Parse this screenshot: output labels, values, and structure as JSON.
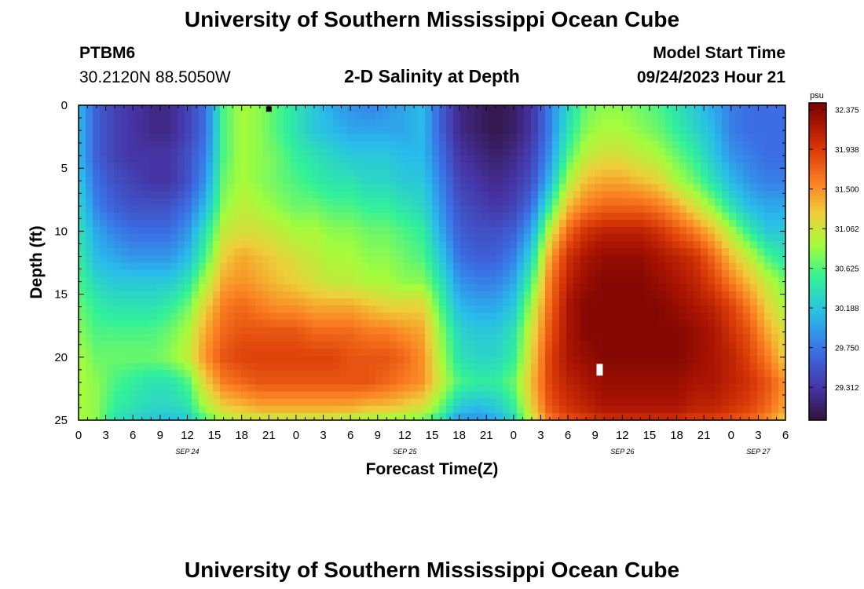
{
  "header": {
    "title": "University of Southern Mississippi Ocean Cube",
    "station_id": "PTBM6",
    "station_coords": "30.2120N  88.5050W",
    "plot_title": "2-D Salinity at Depth",
    "model_start_label": "Model Start Time",
    "model_start_value": "09/24/2023 Hour 21"
  },
  "footer": {
    "title": "University of Southern Mississippi Ocean Cube"
  },
  "chart_data": {
    "type": "heatmap",
    "title": "2-D Salinity at Depth",
    "xlabel": "Forecast Time(Z)",
    "ylabel": "Depth (ft)",
    "x_range_hours": [
      0,
      78
    ],
    "y_range_ft": [
      0,
      25
    ],
    "x_ticks": [
      {
        "hour": 0,
        "label": "0"
      },
      {
        "hour": 3,
        "label": "3"
      },
      {
        "hour": 6,
        "label": "6"
      },
      {
        "hour": 9,
        "label": "9"
      },
      {
        "hour": 12,
        "label": "12"
      },
      {
        "hour": 15,
        "label": "15"
      },
      {
        "hour": 18,
        "label": "18"
      },
      {
        "hour": 21,
        "label": "21"
      },
      {
        "hour": 24,
        "label": "0"
      },
      {
        "hour": 27,
        "label": "3"
      },
      {
        "hour": 30,
        "label": "6"
      },
      {
        "hour": 33,
        "label": "9"
      },
      {
        "hour": 36,
        "label": "12"
      },
      {
        "hour": 39,
        "label": "15"
      },
      {
        "hour": 42,
        "label": "18"
      },
      {
        "hour": 45,
        "label": "21"
      },
      {
        "hour": 48,
        "label": "0"
      },
      {
        "hour": 51,
        "label": "3"
      },
      {
        "hour": 54,
        "label": "6"
      },
      {
        "hour": 57,
        "label": "9"
      },
      {
        "hour": 60,
        "label": "12"
      },
      {
        "hour": 63,
        "label": "15"
      },
      {
        "hour": 66,
        "label": "18"
      },
      {
        "hour": 69,
        "label": "21"
      },
      {
        "hour": 72,
        "label": "0"
      },
      {
        "hour": 75,
        "label": "3"
      },
      {
        "hour": 78,
        "label": "6"
      }
    ],
    "date_labels": [
      {
        "hour": 12,
        "label": "SEP 24"
      },
      {
        "hour": 36,
        "label": "SEP 25"
      },
      {
        "hour": 60,
        "label": "SEP 26"
      },
      {
        "hour": 75,
        "label": "SEP 27"
      }
    ],
    "y_ticks": [
      0,
      5,
      10,
      15,
      20,
      25
    ],
    "colorbar": {
      "unit": "psu",
      "min": 28.95,
      "max": 32.45,
      "tick_labels": [
        "32.375",
        "31.938",
        "31.500",
        "31.062",
        "30.625",
        "30.188",
        "29.750",
        "29.312"
      ],
      "tick_values": [
        32.375,
        31.938,
        31.5,
        31.062,
        30.625,
        30.188,
        29.75,
        29.312
      ]
    },
    "grid_hours": [
      0,
      2,
      4,
      6,
      8,
      10,
      12,
      14,
      16,
      18,
      20,
      22,
      24,
      26,
      28,
      30,
      32,
      34,
      36,
      38,
      40,
      42,
      44,
      46,
      48,
      50,
      52,
      54,
      56,
      58,
      60,
      62,
      64,
      66,
      68,
      70,
      72,
      74,
      76,
      78
    ],
    "grid_depths_ft": [
      0,
      2,
      4,
      6,
      8,
      10,
      12,
      14,
      16,
      18,
      20,
      22,
      24,
      25
    ],
    "salinity_psu": [
      [
        30.1,
        29.6,
        29.4,
        29.3,
        29.2,
        29.2,
        29.4,
        29.7,
        30.6,
        30.9,
        30.8,
        30.6,
        30.4,
        30.2,
        30.0,
        29.9,
        29.8,
        29.9,
        30.0,
        30.1,
        29.6,
        29.2,
        29.1,
        29.0,
        29.1,
        29.3,
        29.8,
        30.3,
        30.7,
        30.8,
        30.8,
        30.7,
        30.6,
        30.4,
        30.2,
        30.0,
        29.8,
        29.7,
        29.7,
        29.7
      ],
      [
        30.1,
        29.6,
        29.4,
        29.3,
        29.2,
        29.2,
        29.4,
        29.7,
        30.6,
        30.9,
        30.8,
        30.6,
        30.4,
        30.2,
        30.1,
        30.0,
        30.0,
        30.0,
        30.0,
        30.1,
        29.6,
        29.2,
        29.1,
        29.0,
        29.1,
        29.3,
        29.8,
        30.4,
        30.8,
        30.9,
        30.9,
        30.8,
        30.7,
        30.5,
        30.3,
        30.1,
        29.8,
        29.7,
        29.7,
        29.7
      ],
      [
        30.1,
        29.6,
        29.4,
        29.3,
        29.3,
        29.3,
        29.5,
        29.8,
        30.6,
        30.9,
        30.8,
        30.7,
        30.5,
        30.4,
        30.3,
        30.2,
        30.2,
        30.2,
        30.1,
        30.1,
        29.7,
        29.3,
        29.2,
        29.1,
        29.2,
        29.4,
        29.9,
        30.6,
        31.0,
        31.1,
        31.1,
        31.0,
        30.9,
        30.7,
        30.5,
        30.2,
        29.9,
        29.8,
        29.7,
        29.7
      ],
      [
        30.2,
        29.7,
        29.5,
        29.4,
        29.3,
        29.3,
        29.5,
        29.9,
        30.7,
        30.9,
        30.8,
        30.7,
        30.6,
        30.5,
        30.4,
        30.4,
        30.3,
        30.3,
        30.2,
        30.2,
        29.8,
        29.4,
        29.3,
        29.2,
        29.3,
        29.5,
        30.1,
        30.9,
        31.3,
        31.4,
        31.4,
        31.3,
        31.2,
        30.9,
        30.7,
        30.4,
        30.1,
        29.9,
        29.8,
        29.8
      ],
      [
        30.3,
        29.8,
        29.6,
        29.5,
        29.5,
        29.5,
        29.7,
        30.1,
        30.8,
        31.0,
        30.9,
        30.8,
        30.7,
        30.7,
        30.6,
        30.6,
        30.5,
        30.5,
        30.4,
        30.3,
        29.9,
        29.5,
        29.4,
        29.3,
        29.4,
        29.7,
        30.5,
        31.3,
        31.6,
        31.7,
        31.7,
        31.7,
        31.6,
        31.4,
        31.1,
        30.8,
        30.4,
        30.1,
        30.0,
        30.0
      ],
      [
        30.4,
        30.0,
        29.8,
        29.7,
        29.7,
        29.7,
        29.9,
        30.4,
        31.0,
        31.1,
        31.1,
        31.0,
        30.9,
        30.9,
        30.8,
        30.8,
        30.7,
        30.7,
        30.6,
        30.5,
        30.0,
        29.6,
        29.5,
        29.5,
        29.6,
        30.0,
        31.0,
        31.7,
        32.0,
        32.1,
        32.1,
        32.1,
        32.0,
        31.8,
        31.6,
        31.3,
        30.9,
        30.5,
        30.2,
        30.2
      ],
      [
        30.5,
        30.1,
        30.0,
        29.9,
        29.9,
        29.9,
        30.1,
        30.6,
        31.2,
        31.4,
        31.3,
        31.2,
        31.1,
        31.0,
        30.9,
        30.9,
        30.8,
        30.8,
        30.7,
        30.6,
        30.2,
        29.7,
        29.6,
        29.6,
        29.8,
        30.3,
        31.4,
        32.0,
        32.2,
        32.3,
        32.3,
        32.3,
        32.2,
        32.1,
        32.0,
        31.7,
        31.3,
        31.0,
        30.6,
        30.4
      ],
      [
        30.6,
        30.3,
        30.2,
        30.2,
        30.2,
        30.2,
        30.4,
        30.9,
        31.4,
        31.5,
        31.4,
        31.3,
        31.2,
        31.1,
        31.0,
        31.0,
        30.9,
        30.9,
        30.8,
        30.8,
        30.4,
        29.9,
        29.8,
        29.8,
        30.0,
        30.6,
        31.6,
        32.1,
        32.3,
        32.4,
        32.4,
        32.4,
        32.3,
        32.2,
        32.1,
        31.9,
        31.6,
        31.3,
        31.0,
        30.7
      ],
      [
        30.7,
        30.5,
        30.4,
        30.4,
        30.4,
        30.5,
        30.7,
        31.2,
        31.6,
        31.7,
        31.6,
        31.5,
        31.5,
        31.4,
        31.4,
        31.4,
        31.3,
        31.2,
        31.2,
        31.2,
        30.6,
        30.1,
        30.0,
        30.0,
        30.2,
        30.9,
        31.7,
        32.2,
        32.4,
        32.4,
        32.4,
        32.4,
        32.4,
        32.3,
        32.2,
        32.1,
        31.9,
        31.6,
        31.2,
        30.9
      ],
      [
        30.8,
        30.6,
        30.6,
        30.6,
        30.6,
        30.7,
        30.9,
        31.4,
        31.7,
        31.8,
        31.8,
        31.8,
        31.8,
        31.7,
        31.7,
        31.7,
        31.6,
        31.6,
        31.5,
        31.4,
        30.8,
        30.3,
        30.2,
        30.2,
        30.4,
        31.1,
        31.8,
        32.2,
        32.4,
        32.4,
        32.4,
        32.4,
        32.4,
        32.4,
        32.3,
        32.2,
        32.0,
        31.8,
        31.4,
        31.1
      ],
      [
        30.9,
        30.7,
        30.7,
        30.7,
        30.7,
        30.8,
        31.0,
        31.5,
        31.8,
        31.9,
        31.9,
        31.9,
        31.9,
        31.9,
        31.9,
        31.8,
        31.8,
        31.8,
        31.7,
        31.5,
        30.9,
        30.4,
        30.3,
        30.3,
        30.5,
        31.2,
        31.9,
        32.2,
        32.3,
        32.4,
        32.4,
        32.4,
        32.4,
        32.4,
        32.3,
        32.2,
        32.1,
        31.9,
        31.6,
        31.2
      ],
      [
        30.9,
        30.8,
        30.6,
        30.5,
        30.4,
        30.4,
        30.6,
        31.2,
        31.6,
        31.7,
        31.8,
        31.8,
        31.8,
        31.8,
        31.8,
        31.8,
        31.8,
        31.7,
        31.6,
        31.5,
        31.0,
        30.6,
        30.5,
        30.5,
        30.7,
        31.3,
        31.9,
        32.1,
        32.2,
        32.3,
        32.3,
        32.3,
        32.3,
        32.3,
        32.2,
        32.2,
        32.1,
        32.0,
        31.8,
        31.5
      ],
      [
        30.9,
        30.8,
        30.5,
        30.4,
        30.3,
        30.3,
        30.4,
        30.9,
        31.2,
        31.3,
        31.4,
        31.4,
        31.4,
        31.4,
        31.4,
        31.4,
        31.3,
        31.3,
        31.2,
        31.1,
        30.7,
        30.2,
        30.1,
        30.2,
        30.5,
        31.2,
        31.8,
        32.0,
        32.1,
        32.2,
        32.2,
        32.2,
        32.2,
        32.2,
        32.1,
        32.1,
        32.0,
        31.9,
        31.7,
        31.4
      ],
      [
        30.9,
        30.8,
        30.4,
        30.3,
        30.2,
        30.1,
        30.2,
        30.6,
        30.9,
        31.0,
        31.0,
        31.0,
        31.0,
        31.0,
        31.0,
        30.9,
        30.9,
        30.8,
        30.8,
        30.7,
        30.4,
        29.9,
        29.9,
        30.0,
        30.3,
        31.0,
        31.6,
        31.8,
        31.9,
        32.0,
        32.0,
        32.0,
        32.0,
        32.0,
        31.9,
        31.9,
        31.8,
        31.7,
        31.5,
        31.2
      ]
    ],
    "markers": [
      {
        "hour": 21.0,
        "depth_ft": 0.3,
        "color": "#000000"
      },
      {
        "hour": 57.5,
        "depth_ft": 21.0,
        "color": "#ffffff"
      }
    ]
  }
}
